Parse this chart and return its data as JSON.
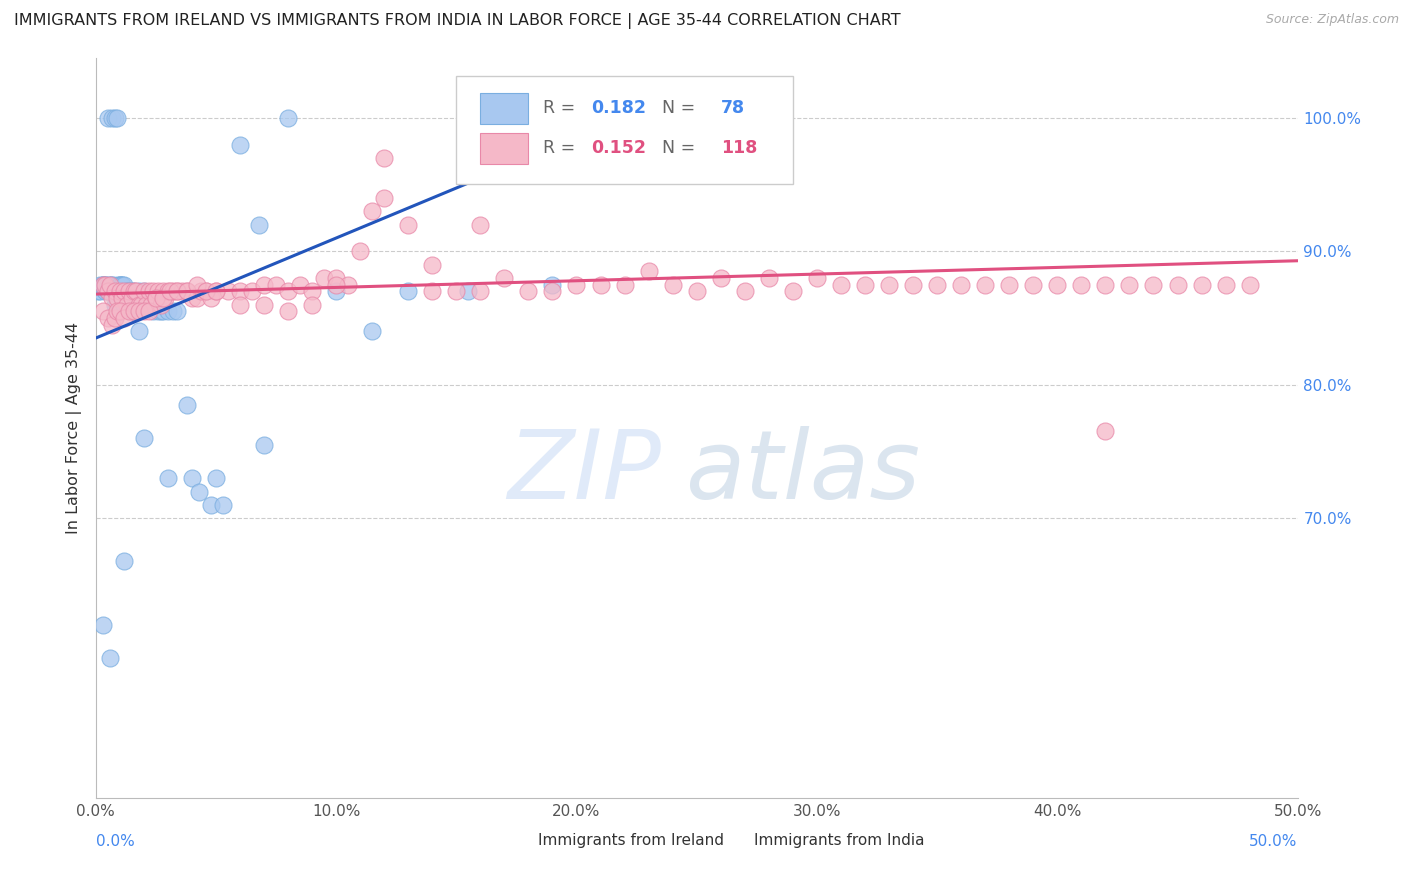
{
  "title": "IMMIGRANTS FROM IRELAND VS IMMIGRANTS FROM INDIA IN LABOR FORCE | AGE 35-44 CORRELATION CHART",
  "source": "Source: ZipAtlas.com",
  "ylabel": "In Labor Force | Age 35-44",
  "xlim": [
    0.0,
    0.5
  ],
  "ylim": [
    0.49,
    1.045
  ],
  "xticks": [
    0.0,
    0.1,
    0.2,
    0.3,
    0.4,
    0.5
  ],
  "xticklabels": [
    "0.0%",
    "10.0%",
    "20.0%",
    "30.0%",
    "40.0%",
    "50.0%"
  ],
  "right_ytick_vals": [
    1.0,
    0.9,
    0.8,
    0.7
  ],
  "right_yticklabels": [
    "100.0%",
    "90.0%",
    "80.0%",
    "70.0%"
  ],
  "ireland_color": "#a8c8f0",
  "ireland_edge_color": "#7aaee0",
  "ireland_line_color": "#2255bb",
  "india_color": "#f5b8c8",
  "india_edge_color": "#e888a8",
  "india_line_color": "#e05080",
  "watermark_zip": "ZIP",
  "watermark_atlas": "atlas",
  "watermark_color_zip": "#c5d8f0",
  "watermark_color_atlas": "#b8cce8",
  "grid_color": "#cccccc",
  "legend_ireland_R": "0.182",
  "legend_ireland_N": "78",
  "legend_india_R": "0.152",
  "legend_india_N": "118",
  "ireland_trend_x0": 0.0,
  "ireland_trend_y0": 0.835,
  "ireland_trend_x1": 0.22,
  "ireland_trend_y1": 1.0,
  "ireland_trend_solid_end": 0.22,
  "india_trend_x0": 0.0,
  "india_trend_y0": 0.868,
  "india_trend_x1": 0.5,
  "india_trend_y1": 0.893,
  "ireland_scatter_x": [
    0.001,
    0.002,
    0.002,
    0.003,
    0.003,
    0.003,
    0.004,
    0.004,
    0.004,
    0.005,
    0.005,
    0.005,
    0.006,
    0.006,
    0.006,
    0.007,
    0.007,
    0.007,
    0.008,
    0.008,
    0.009,
    0.009,
    0.009,
    0.01,
    0.01,
    0.01,
    0.01,
    0.011,
    0.011,
    0.011,
    0.012,
    0.012,
    0.012,
    0.013,
    0.013,
    0.014,
    0.014,
    0.015,
    0.015,
    0.015,
    0.016,
    0.016,
    0.017,
    0.017,
    0.018,
    0.018,
    0.019,
    0.02,
    0.02,
    0.021,
    0.022,
    0.023,
    0.024,
    0.025,
    0.026,
    0.027,
    0.028,
    0.03,
    0.032,
    0.034,
    0.038,
    0.04,
    0.043,
    0.048,
    0.053,
    0.06,
    0.068,
    0.08,
    0.1,
    0.115,
    0.13,
    0.155,
    0.19,
    0.22,
    0.005,
    0.007,
    0.008,
    0.009
  ],
  "ireland_scatter_y": [
    0.87,
    0.87,
    0.875,
    0.875,
    0.875,
    0.875,
    0.87,
    0.875,
    0.875,
    0.87,
    0.87,
    0.875,
    0.87,
    0.87,
    0.875,
    0.87,
    0.875,
    0.875,
    0.86,
    0.87,
    0.86,
    0.87,
    0.875,
    0.87,
    0.875,
    0.875,
    0.875,
    0.87,
    0.875,
    0.875,
    0.86,
    0.87,
    0.875,
    0.86,
    0.87,
    0.86,
    0.87,
    0.855,
    0.86,
    0.87,
    0.855,
    0.87,
    0.855,
    0.86,
    0.84,
    0.87,
    0.86,
    0.86,
    0.87,
    0.86,
    0.865,
    0.865,
    0.855,
    0.865,
    0.855,
    0.855,
    0.855,
    0.855,
    0.855,
    0.855,
    0.785,
    0.73,
    0.72,
    0.71,
    0.71,
    0.98,
    0.92,
    1.0,
    0.87,
    0.84,
    0.87,
    0.87,
    0.875,
    1.0,
    1.0,
    1.0,
    1.0,
    1.0
  ],
  "ireland_scatter_lowx": [
    0.003,
    0.006,
    0.012,
    0.02,
    0.03,
    0.05,
    0.07
  ],
  "ireland_scatter_lowy": [
    0.62,
    0.595,
    0.668,
    0.76,
    0.73,
    0.73,
    0.755
  ],
  "india_scatter_x": [
    0.003,
    0.004,
    0.005,
    0.006,
    0.007,
    0.008,
    0.009,
    0.01,
    0.011,
    0.012,
    0.013,
    0.014,
    0.015,
    0.016,
    0.017,
    0.018,
    0.019,
    0.02,
    0.021,
    0.022,
    0.023,
    0.024,
    0.025,
    0.026,
    0.027,
    0.028,
    0.029,
    0.03,
    0.032,
    0.034,
    0.036,
    0.038,
    0.04,
    0.042,
    0.044,
    0.046,
    0.048,
    0.05,
    0.055,
    0.06,
    0.065,
    0.07,
    0.075,
    0.08,
    0.085,
    0.09,
    0.095,
    0.1,
    0.105,
    0.11,
    0.115,
    0.12,
    0.13,
    0.14,
    0.15,
    0.16,
    0.17,
    0.18,
    0.19,
    0.2,
    0.21,
    0.22,
    0.23,
    0.24,
    0.25,
    0.26,
    0.27,
    0.28,
    0.29,
    0.3,
    0.31,
    0.32,
    0.33,
    0.34,
    0.35,
    0.36,
    0.37,
    0.38,
    0.39,
    0.4,
    0.41,
    0.42,
    0.43,
    0.44,
    0.45,
    0.46,
    0.47,
    0.48,
    0.003,
    0.005,
    0.007,
    0.008,
    0.009,
    0.01,
    0.012,
    0.014,
    0.016,
    0.018,
    0.02,
    0.022,
    0.025,
    0.028,
    0.031,
    0.034,
    0.038,
    0.042,
    0.046,
    0.05,
    0.06,
    0.07,
    0.08,
    0.09,
    0.1,
    0.12,
    0.14,
    0.16,
    0.18,
    0.42
  ],
  "india_scatter_y": [
    0.875,
    0.875,
    0.87,
    0.875,
    0.865,
    0.87,
    0.865,
    0.87,
    0.865,
    0.87,
    0.86,
    0.87,
    0.865,
    0.87,
    0.87,
    0.86,
    0.86,
    0.87,
    0.86,
    0.87,
    0.86,
    0.87,
    0.865,
    0.87,
    0.86,
    0.87,
    0.865,
    0.87,
    0.87,
    0.87,
    0.87,
    0.87,
    0.865,
    0.865,
    0.87,
    0.87,
    0.865,
    0.87,
    0.87,
    0.87,
    0.87,
    0.875,
    0.875,
    0.87,
    0.875,
    0.87,
    0.88,
    0.88,
    0.875,
    0.9,
    0.93,
    0.94,
    0.92,
    0.87,
    0.87,
    0.87,
    0.88,
    0.87,
    0.87,
    0.875,
    0.875,
    0.875,
    0.885,
    0.875,
    0.87,
    0.88,
    0.87,
    0.88,
    0.87,
    0.88,
    0.875,
    0.875,
    0.875,
    0.875,
    0.875,
    0.875,
    0.875,
    0.875,
    0.875,
    0.875,
    0.875,
    0.875,
    0.875,
    0.875,
    0.875,
    0.875,
    0.875,
    0.875,
    0.855,
    0.85,
    0.845,
    0.85,
    0.855,
    0.855,
    0.85,
    0.855,
    0.855,
    0.855,
    0.855,
    0.855,
    0.865,
    0.865,
    0.87,
    0.87,
    0.87,
    0.875,
    0.87,
    0.87,
    0.86,
    0.86,
    0.855,
    0.86,
    0.875,
    0.97,
    0.89,
    0.92,
    0.97,
    0.765
  ]
}
